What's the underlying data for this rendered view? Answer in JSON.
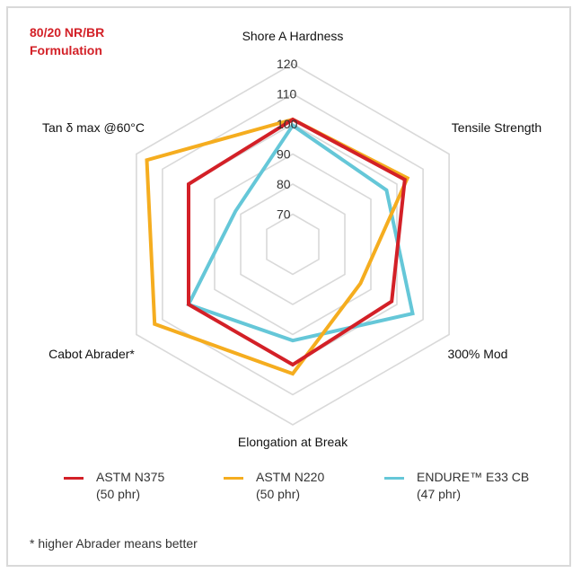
{
  "formulation": {
    "line1": "80/20 NR/BR",
    "line2": "Formulation"
  },
  "chart_data": {
    "type": "radar",
    "axes": [
      "Shore A Hardness",
      "Tensile Strength",
      "300% Mod",
      "Elongation at Break",
      "Cabot Abrader*",
      "Tan δ max @60°C"
    ],
    "r_ticks": [
      70,
      80,
      90,
      100,
      110,
      120
    ],
    "r_range": [
      60,
      120
    ],
    "grid": true,
    "legend_position": "bottom",
    "series": [
      {
        "name": "ASTM N375",
        "name_line2": "(50 phr)",
        "color": "#d32027",
        "values": [
          101.5,
          103,
          98,
          100,
          100,
          100
        ]
      },
      {
        "name": "ASTM N220",
        "name_line2": "(50 phr)",
        "color": "#f5ad1f",
        "values": [
          101.5,
          104,
          86,
          103,
          113,
          116
        ]
      },
      {
        "name": "ENDURE™ E33 CB",
        "name_line2": "(47 phr)",
        "color": "#65c7d8",
        "values": [
          99.5,
          96,
          106,
          92,
          100,
          82
        ]
      }
    ]
  },
  "colors": {
    "grid": "#d9d9d9",
    "frame": "#d9d9d9",
    "accent": "#d32027"
  },
  "footnote": "* higher Abrader means better"
}
